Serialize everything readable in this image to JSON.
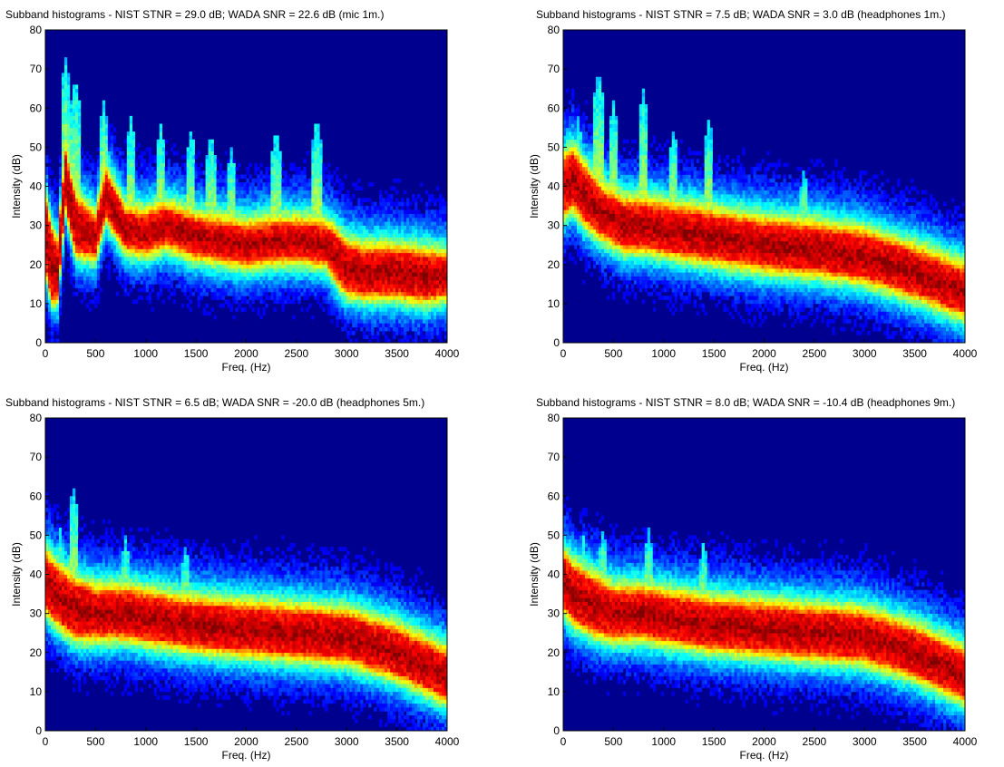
{
  "chart_data": [
    {
      "type": "heatmap",
      "title": "Subband histograms - NIST STNR = 29.0 dB; WADA SNR  = 22.6 dB (mic 1m.)",
      "xlabel": "Freq. (Hz)",
      "ylabel": "Intensity (dB)",
      "xlim": [
        0,
        4000
      ],
      "ylim": [
        0,
        80
      ],
      "xticks": [
        0,
        500,
        1000,
        1500,
        2000,
        2500,
        3000,
        3500,
        4000
      ],
      "yticks": [
        0,
        10,
        20,
        30,
        40,
        50,
        60,
        70,
        80
      ],
      "colormap": "jet",
      "background_color": "#00008f",
      "ridge": {
        "freq_hz": [
          0,
          60,
          120,
          200,
          300,
          500,
          600,
          800,
          1000,
          1200,
          1500,
          1800,
          2000,
          2300,
          2600,
          2800,
          2900,
          3000,
          3200,
          3500,
          3800,
          4000
        ],
        "intensity_db": [
          28,
          20,
          18,
          42,
          30,
          27,
          38,
          29,
          28,
          30,
          27,
          26,
          25,
          26,
          26,
          25,
          22,
          19,
          18,
          18,
          17,
          17
        ],
        "halfwidth_db": [
          8,
          8,
          6,
          6,
          6,
          4,
          5,
          4,
          4,
          4,
          4,
          4,
          4,
          4,
          4,
          4,
          5,
          5,
          5,
          5,
          5,
          4
        ]
      },
      "peaks": [
        {
          "freq_hz": 200,
          "top_db": 73
        },
        {
          "freq_hz": 300,
          "top_db": 68
        },
        {
          "freq_hz": 580,
          "top_db": 62
        },
        {
          "freq_hz": 850,
          "top_db": 58
        },
        {
          "freq_hz": 1150,
          "top_db": 56
        },
        {
          "freq_hz": 1450,
          "top_db": 55
        },
        {
          "freq_hz": 1650,
          "top_db": 54
        },
        {
          "freq_hz": 1850,
          "top_db": 50
        },
        {
          "freq_hz": 2300,
          "top_db": 55
        },
        {
          "freq_hz": 2700,
          "top_db": 58
        }
      ]
    },
    {
      "type": "heatmap",
      "title": "Subband histograms - NIST STNR = 7.5 dB; WADA SNR  = 3.0 dB (headphones 1m.)",
      "xlabel": "Freq. (Hz)",
      "ylabel": "Intensity (dB)",
      "xlim": [
        0,
        4000
      ],
      "ylim": [
        0,
        80
      ],
      "xticks": [
        0,
        500,
        1000,
        1500,
        2000,
        2500,
        3000,
        3500,
        4000
      ],
      "yticks": [
        0,
        10,
        20,
        30,
        40,
        50,
        60,
        70,
        80
      ],
      "colormap": "jet",
      "background_color": "#00008f",
      "ridge": {
        "freq_hz": [
          0,
          100,
          200,
          400,
          600,
          800,
          1000,
          1500,
          2000,
          2500,
          3000,
          3500,
          4000
        ],
        "intensity_db": [
          40,
          42,
          38,
          33,
          30,
          30,
          29,
          27,
          25,
          24,
          22,
          18,
          13
        ],
        "halfwidth_db": [
          6,
          6,
          6,
          5,
          5,
          5,
          5,
          5,
          5,
          5,
          5,
          5,
          5
        ]
      },
      "peaks": [
        {
          "freq_hz": 150,
          "top_db": 58
        },
        {
          "freq_hz": 350,
          "top_db": 70
        },
        {
          "freq_hz": 500,
          "top_db": 62
        },
        {
          "freq_hz": 800,
          "top_db": 65
        },
        {
          "freq_hz": 1100,
          "top_db": 55
        },
        {
          "freq_hz": 1450,
          "top_db": 58
        },
        {
          "freq_hz": 2400,
          "top_db": 45
        }
      ]
    },
    {
      "type": "heatmap",
      "title": "Subband histograms - NIST STNR = 6.5 dB; WADA SNR  = -20.0 dB (headphones 5m.)",
      "xlabel": "Freq. (Hz)",
      "ylabel": "Intensity (dB)",
      "xlim": [
        0,
        4000
      ],
      "ylim": [
        0,
        80
      ],
      "xticks": [
        0,
        500,
        1000,
        1500,
        2000,
        2500,
        3000,
        3500,
        4000
      ],
      "yticks": [
        0,
        10,
        20,
        30,
        40,
        50,
        60,
        70,
        80
      ],
      "colormap": "jet",
      "background_color": "#00008f",
      "ridge": {
        "freq_hz": [
          0,
          100,
          300,
          500,
          800,
          1000,
          1500,
          2000,
          2500,
          3000,
          3500,
          4000
        ],
        "intensity_db": [
          38,
          35,
          31,
          30,
          30,
          29,
          27,
          26,
          25,
          24,
          20,
          14
        ],
        "halfwidth_db": [
          6,
          6,
          6,
          5,
          5,
          5,
          5,
          5,
          5,
          5,
          5,
          5
        ]
      },
      "peaks": [
        {
          "freq_hz": 150,
          "top_db": 52
        },
        {
          "freq_hz": 280,
          "top_db": 63
        },
        {
          "freq_hz": 800,
          "top_db": 50
        },
        {
          "freq_hz": 1400,
          "top_db": 48
        }
      ]
    },
    {
      "type": "heatmap",
      "title": "Subband histograms - NIST STNR = 8.0 dB; WADA SNR  = -10.4 dB (headphones 9m.)",
      "xlabel": "Freq. (Hz)",
      "ylabel": "Intensity (dB)",
      "xlim": [
        0,
        4000
      ],
      "ylim": [
        0,
        80
      ],
      "xticks": [
        0,
        500,
        1000,
        1500,
        2000,
        2500,
        3000,
        3500,
        4000
      ],
      "yticks": [
        0,
        10,
        20,
        30,
        40,
        50,
        60,
        70,
        80
      ],
      "colormap": "jet",
      "background_color": "#00008f",
      "ridge": {
        "freq_hz": [
          0,
          100,
          300,
          500,
          800,
          1000,
          1500,
          2000,
          2500,
          3000,
          3500,
          4000
        ],
        "intensity_db": [
          38,
          35,
          32,
          30,
          30,
          29,
          27,
          26,
          25,
          24,
          20,
          14
        ],
        "halfwidth_db": [
          6,
          6,
          6,
          5,
          5,
          5,
          5,
          5,
          5,
          5,
          5,
          5
        ]
      },
      "peaks": [
        {
          "freq_hz": 200,
          "top_db": 50
        },
        {
          "freq_hz": 400,
          "top_db": 52
        },
        {
          "freq_hz": 850,
          "top_db": 52
        },
        {
          "freq_hz": 1400,
          "top_db": 49
        }
      ]
    }
  ]
}
